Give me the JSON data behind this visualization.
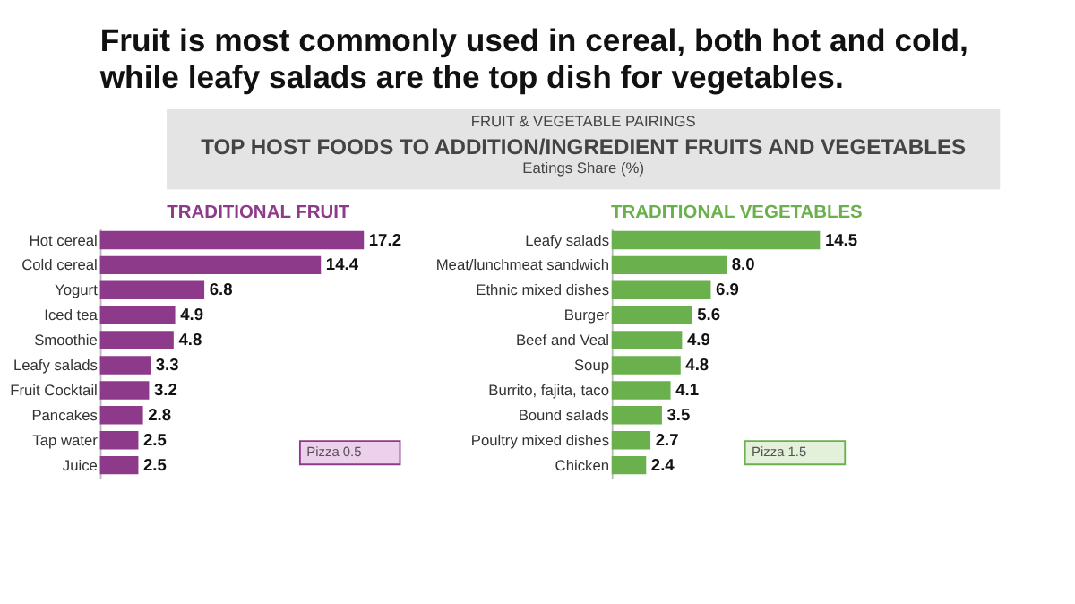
{
  "chart_data": [
    {
      "type": "bar",
      "orientation": "horizontal",
      "title": "TRADITIONAL FRUIT",
      "color": "#8e3a8a",
      "categories": [
        "Hot cereal",
        "Cold cereal",
        "Yogurt",
        "Iced tea",
        "Smoothie",
        "Leafy salads",
        "Fruit Cocktail",
        "Pancakes",
        "Tap water",
        "Juice"
      ],
      "values": [
        17.2,
        14.4,
        6.8,
        4.9,
        4.8,
        3.3,
        3.2,
        2.8,
        2.5,
        2.5
      ],
      "value_labels": [
        "17.2",
        "14.4",
        "6.8",
        "4.9",
        "4.8",
        "3.3",
        "3.2",
        "2.8",
        "2.5",
        "2.5"
      ],
      "annotations": [
        "Fruit is most commonly used in cereal, both hot and cold, while leafy salads are the top dish for vegetables.",
        "FRUIT & VEGETABLE PAIRINGS",
        "TOP HOST FOODS TO ADDITION/INGREDIENT FRUITS AND VEGETABLES",
        "Eatings Share (%)",
        "Pizza 0.5"
      ]
    },
    {
      "type": "bar",
      "orientation": "horizontal",
      "title": "TRADITIONAL VEGETABLES",
      "color": "#6ab04c",
      "categories": [
        "Leafy salads",
        "Meat/lunchmeat sandwich",
        "Ethnic mixed dishes",
        "Burger",
        "Beef and Veal",
        "Soup",
        "Burrito, fajita, taco",
        "Bound salads",
        "Poultry mixed dishes",
        "Chicken"
      ],
      "values": [
        14.5,
        8.0,
        6.9,
        5.6,
        4.9,
        4.8,
        4.1,
        3.5,
        2.7,
        2.4
      ],
      "value_labels": [
        "14.5",
        "8.0",
        "6.9",
        "5.6",
        "4.9",
        "4.8",
        "4.1",
        "3.5",
        "2.7",
        "2.4"
      ],
      "annotations": [
        "Pizza 1.5"
      ]
    }
  ]
}
